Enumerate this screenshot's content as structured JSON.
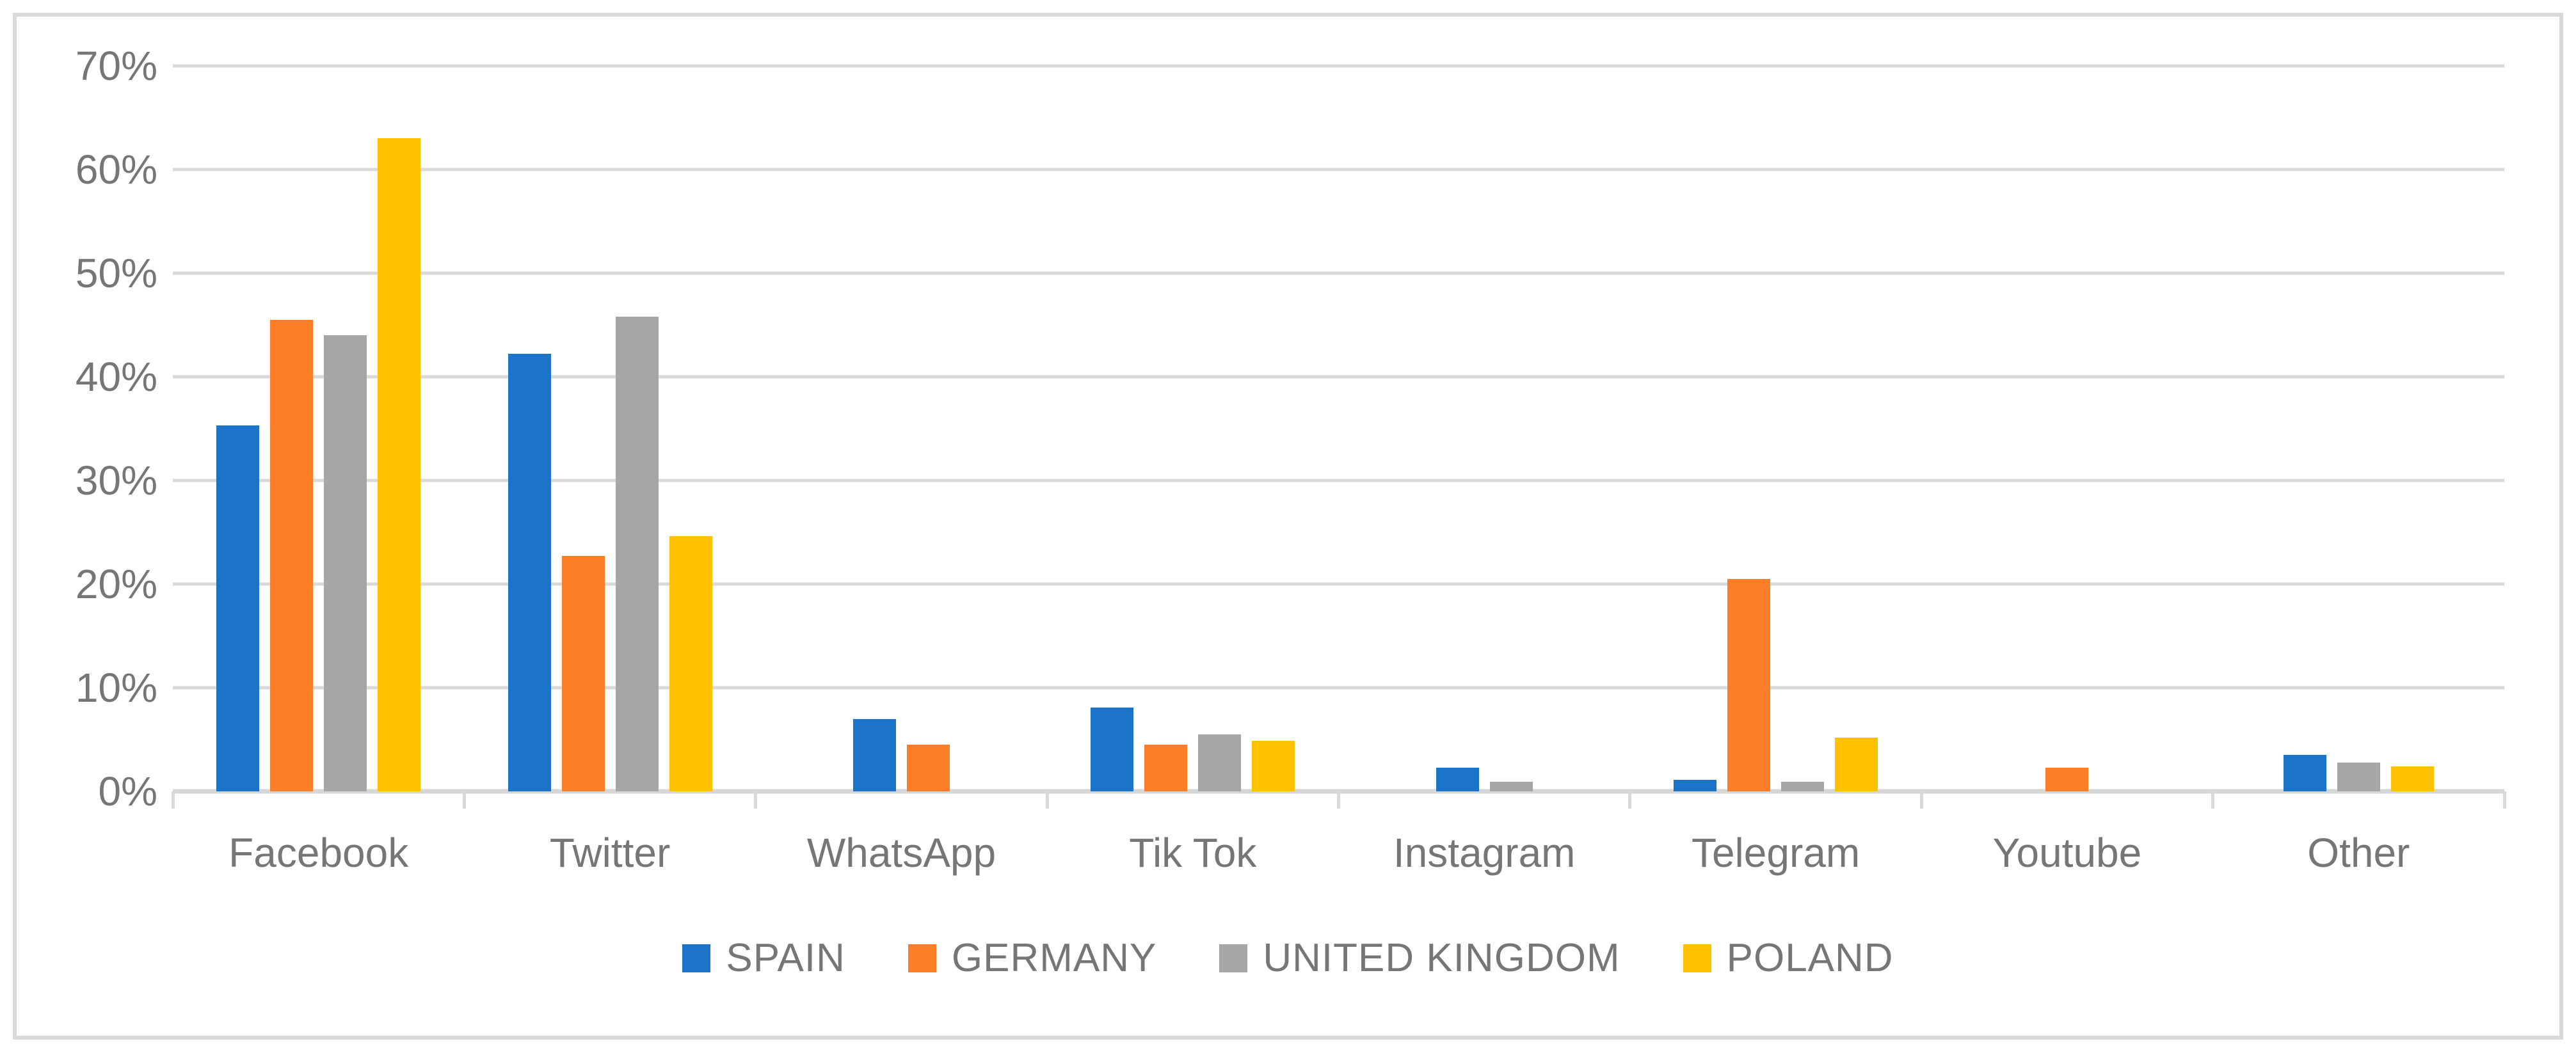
{
  "chart_data": {
    "type": "bar",
    "title": "",
    "xlabel": "",
    "ylabel": "",
    "ylim": [
      0,
      70
    ],
    "grid": true,
    "legend_position": "bottom-center",
    "y_ticks_top_down": [
      "70%",
      "60%",
      "50%",
      "40%",
      "30%",
      "20%",
      "10%",
      "0%"
    ],
    "categories": [
      "Facebook",
      "Twitter",
      "WhatsApp",
      "Tik Tok",
      "Instagram",
      "Telegram",
      "Youtube",
      "Other"
    ],
    "series": [
      {
        "name": "SPAIN",
        "color": "#1C74C8",
        "values": [
          35.3,
          42.2,
          7.0,
          8.1,
          2.3,
          1.1,
          0,
          3.5
        ]
      },
      {
        "name": "GERMANY",
        "color": "#FC7E28",
        "values": [
          45.5,
          22.7,
          4.5,
          4.5,
          0,
          20.5,
          2.3,
          0
        ]
      },
      {
        "name": "UNITED KINGDOM",
        "color": "#A6A6A6",
        "values": [
          44.0,
          45.8,
          0,
          5.5,
          0.9,
          0.9,
          0,
          2.8
        ]
      },
      {
        "name": "POLAND",
        "color": "#FFC000",
        "values": [
          63.0,
          24.6,
          0,
          4.9,
          0,
          5.2,
          0,
          2.4
        ]
      }
    ]
  },
  "colors": {
    "grid": "#D9D9D9",
    "axis_line": "#D6D6D6",
    "text": "#767676",
    "border": "#D9D9D9",
    "background": "#FFFFFF"
  }
}
